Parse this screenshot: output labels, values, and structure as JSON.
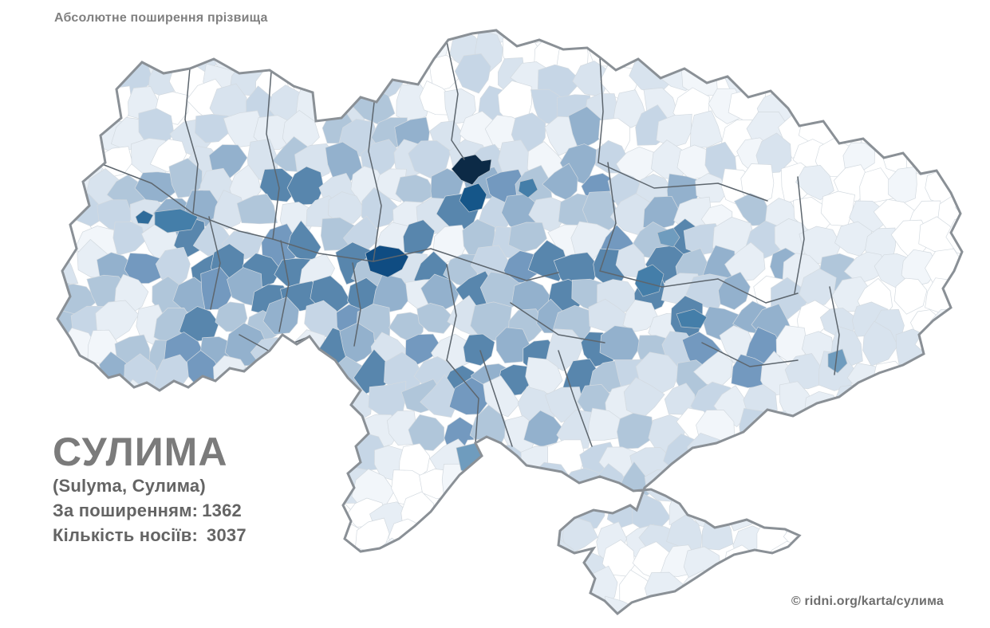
{
  "header": {
    "title": "Абсолютне поширення прізвища"
  },
  "surname_panel": {
    "surname": "СУЛИМА",
    "variants": "(Sulyma, Сулима)",
    "rank_label": "За поширенням:",
    "rank_value": "1362",
    "count_label": "Кількість носіїв:",
    "count_value": "3037"
  },
  "footer": {
    "credit": "© ridni.org/karta/сулима"
  },
  "map": {
    "region_name": "Ukraine districts choropleth",
    "palette": [
      "#ffffff",
      "#f2f6fa",
      "#e7eef5",
      "#d8e3ee",
      "#c6d6e6",
      "#b0c6da",
      "#93b1cd",
      "#7399bf",
      "#5886ad"
    ],
    "highlight_colors": {
      "darkest": "#0c2a46",
      "dark": "#155689",
      "navy": "#0f4c82",
      "strong": "#2e6b9a",
      "steel": "#447ea9",
      "medium": "#6f9cbe"
    },
    "country_border_color": "#8a9096",
    "oblast_border_color": "#5d666e",
    "cell_border_color": "#d3dae0"
  }
}
